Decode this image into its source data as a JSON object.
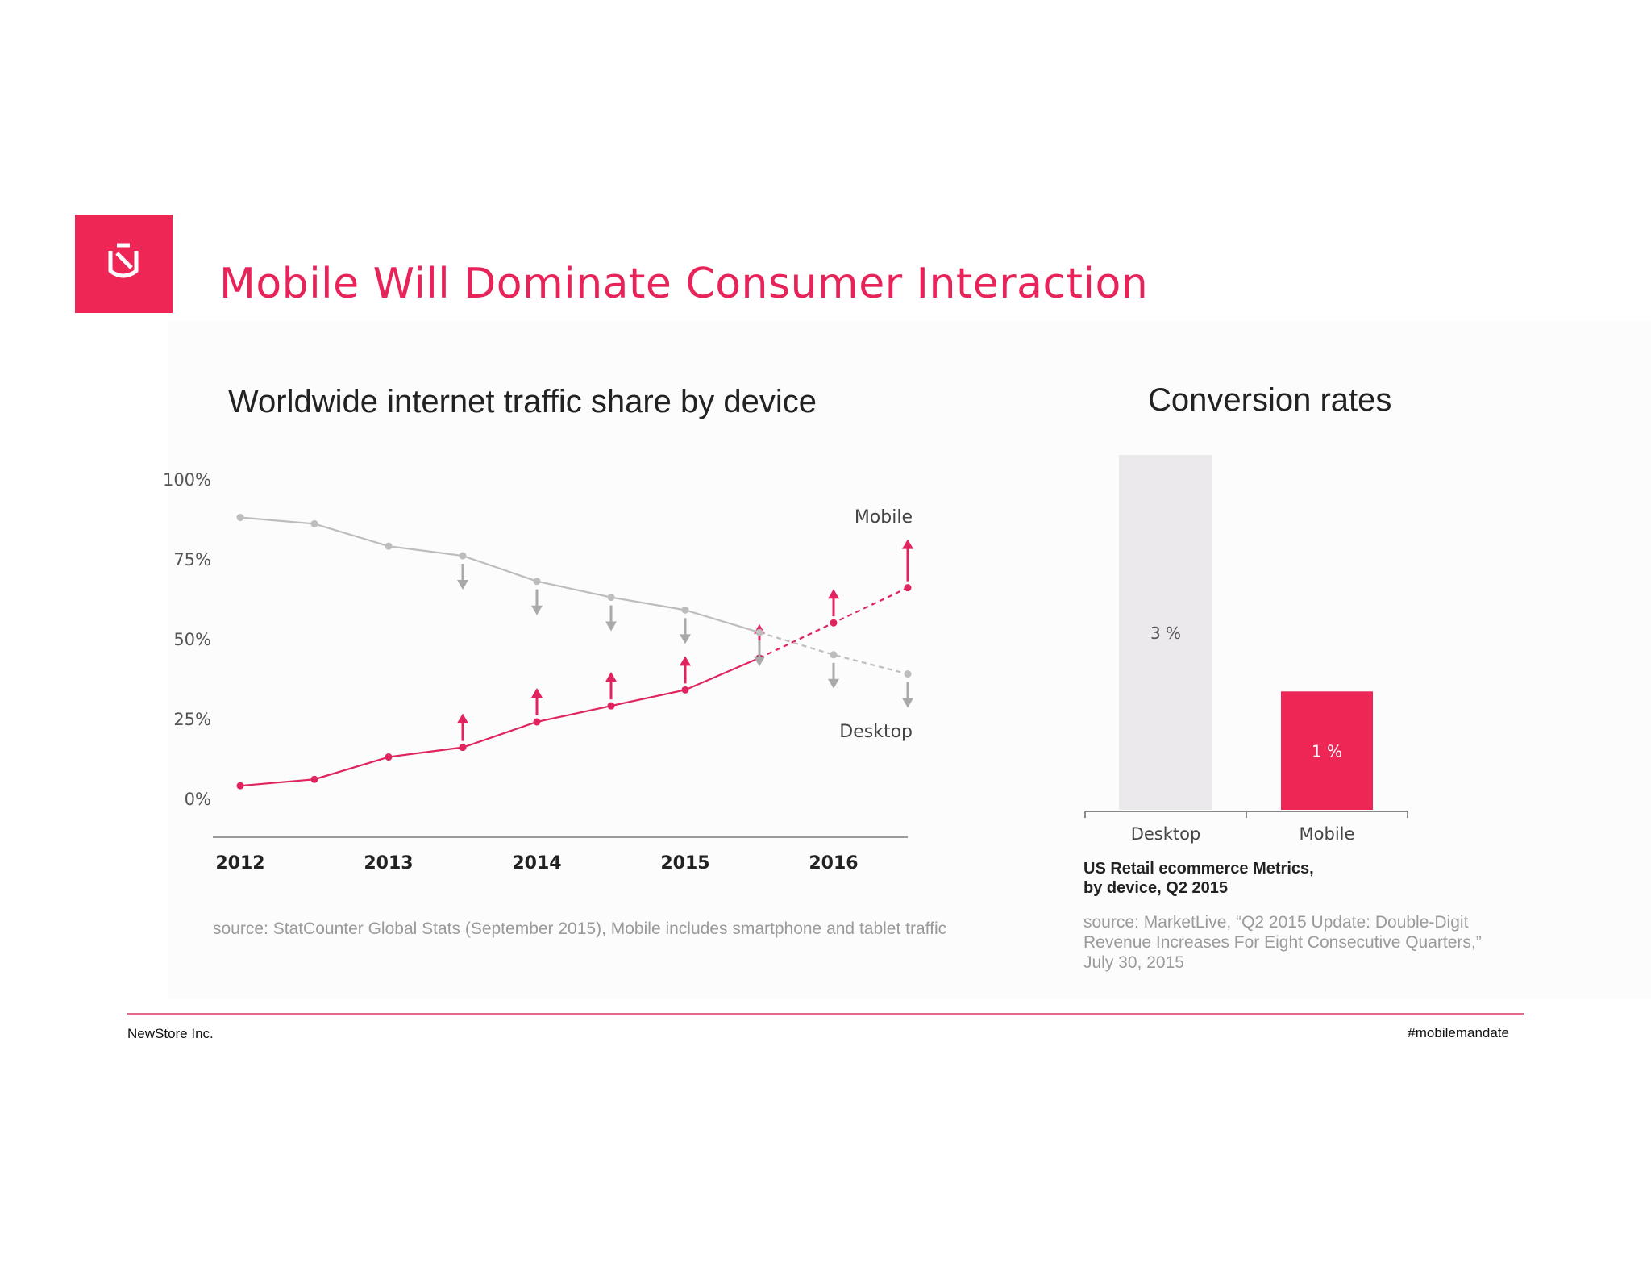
{
  "header": {
    "title": "Mobile Will Dominate Consumer Interaction"
  },
  "footer": {
    "company": "NewStore Inc.",
    "hashtag": "#mobilemandate"
  },
  "colors": {
    "accent": "#ee2656",
    "desktop_line": "#bdbdbd",
    "mobile_line": "#e0245e",
    "desktop_bar": "#ebe9eb"
  },
  "chart_data": [
    {
      "type": "line",
      "title": "Worldwide internet traffic share by device",
      "xlabel": "",
      "ylabel": "",
      "ylim": [
        0,
        100
      ],
      "y_ticks": [
        "100%",
        "75%",
        "50%",
        "25%",
        "0%"
      ],
      "x_tick_labels": [
        "2012",
        "2013",
        "2014",
        "2015",
        "2016"
      ],
      "x": [
        2012.0,
        2012.5,
        2013.0,
        2013.5,
        2014.0,
        2014.5,
        2015.0,
        2015.5,
        2016.0,
        2016.5
      ],
      "series": [
        {
          "name": "Mobile",
          "values": [
            4,
            6,
            13,
            16,
            24,
            29,
            34,
            44,
            55,
            66
          ],
          "projected_from_index": 7,
          "trend_arrows": "up"
        },
        {
          "name": "Desktop",
          "values": [
            88,
            86,
            79,
            76,
            68,
            63,
            59,
            52,
            45,
            39
          ],
          "projected_from_index": 7,
          "trend_arrows": "down"
        }
      ],
      "grid": false,
      "source": "source: StatCounter Global Stats (September 2015), Mobile includes smartphone and tablet traffic"
    },
    {
      "type": "bar",
      "title": "Conversion rates",
      "categories": [
        "Desktop",
        "Mobile"
      ],
      "values": [
        3,
        1
      ],
      "value_labels": [
        "3 %",
        "1 %"
      ],
      "subtitle_line1": "US Retail ecommerce Metrics,",
      "subtitle_line2": "by device, Q2 2015",
      "source_line1": "source: MarketLive, “Q2 2015 Update: Double-Digit",
      "source_line2": "Revenue Increases For Eight Consecutive Quarters,”",
      "source_line3": "July 30, 2015"
    }
  ]
}
